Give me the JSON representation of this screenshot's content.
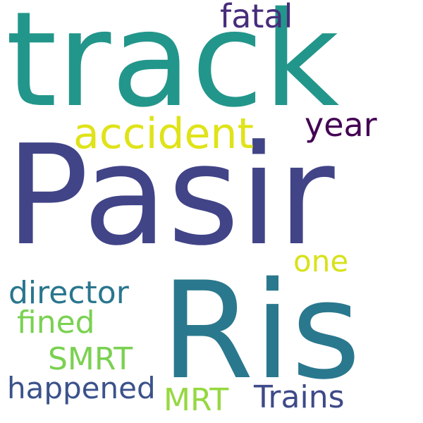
{
  "words": [
    {
      "id": "track",
      "text": "track",
      "color": "#23968b"
    },
    {
      "id": "pasir",
      "text": "Pasir",
      "color": "#414487"
    },
    {
      "id": "ris",
      "text": "Ris",
      "color": "#2a788e"
    },
    {
      "id": "accident",
      "text": "accident",
      "color": "#dfe318"
    },
    {
      "id": "fatal",
      "text": "fatal",
      "color": "#472d7b"
    },
    {
      "id": "year",
      "text": "year",
      "color": "#440154"
    },
    {
      "id": "one",
      "text": "one",
      "color": "#d8e219"
    },
    {
      "id": "director",
      "text": "director",
      "color": "#2a768e"
    },
    {
      "id": "fined",
      "text": "fined",
      "color": "#7ad151"
    },
    {
      "id": "smrt",
      "text": "SMRT",
      "color": "#7ad151"
    },
    {
      "id": "happened",
      "text": "happened",
      "color": "#3b528b"
    },
    {
      "id": "mrt",
      "text": "MRT",
      "color": "#95d840"
    },
    {
      "id": "trains",
      "text": "Trains",
      "color": "#3e4a89"
    }
  ]
}
